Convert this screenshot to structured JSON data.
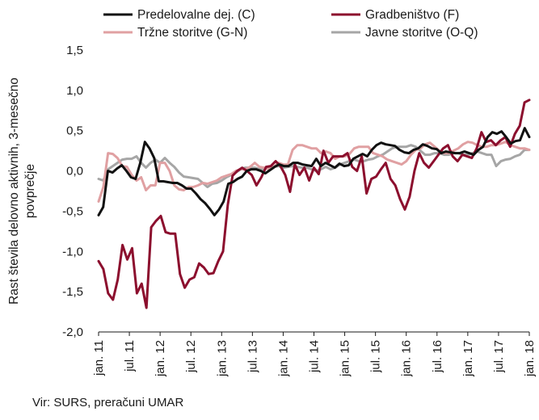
{
  "chart_data": {
    "type": "line",
    "ylabel_lines": [
      "Rast števila delovno aktivnih, 3-mesečno",
      "povprečje"
    ],
    "xlabel": "",
    "ylim": [
      -2.0,
      1.5
    ],
    "y_ticks": [
      "1,5",
      "1,0",
      "0,5",
      "0,0",
      "-0,5",
      "-1,0",
      "-1,5",
      "-2,0"
    ],
    "x_ticks": [
      "jan. 11",
      "jul. 11",
      "jan. 12",
      "jul. 12",
      "jan. 13",
      "jul. 13",
      "jan. 14",
      "jul. 14",
      "jan. 15",
      "jul. 15",
      "jan. 16",
      "jul. 16",
      "jan. 17",
      "jul. 17",
      "jan. 18"
    ],
    "legend_position": "top",
    "grid": false,
    "x_start": "2011-01",
    "x_end": "2018-01",
    "series": [
      {
        "name": "Predelovalne dej. (C)",
        "color": "#111111",
        "values": [
          -0.55,
          -0.45,
          0.0,
          -0.02,
          0.03,
          0.07,
          0.0,
          -0.08,
          -0.1,
          0.1,
          0.36,
          0.28,
          0.16,
          -0.13,
          -0.13,
          -0.14,
          -0.15,
          -0.15,
          -0.18,
          -0.22,
          -0.22,
          -0.28,
          -0.35,
          -0.4,
          -0.47,
          -0.55,
          -0.48,
          -0.38,
          -0.16,
          -0.14,
          -0.1,
          -0.07,
          0.0,
          0.02,
          0.02,
          0.0,
          -0.03,
          0.01,
          0.05,
          0.08,
          0.06,
          0.06,
          0.1,
          0.1,
          0.08,
          0.07,
          0.06,
          0.15,
          0.06,
          0.1,
          0.07,
          0.04,
          0.09,
          0.06,
          0.07,
          0.15,
          0.18,
          0.21,
          0.18,
          0.26,
          0.32,
          0.35,
          0.33,
          0.32,
          0.31,
          0.26,
          0.23,
          0.22,
          0.26,
          0.28,
          0.33,
          0.31,
          0.28,
          0.27,
          0.22,
          0.24,
          0.23,
          0.22,
          0.22,
          0.24,
          0.22,
          0.2,
          0.26,
          0.3,
          0.42,
          0.48,
          0.46,
          0.49,
          0.42,
          0.34,
          0.37,
          0.38,
          0.53,
          0.42
        ]
      },
      {
        "name": "Gradbeništvo (F)",
        "color": "#8c0f2e",
        "values": [
          -1.12,
          -1.22,
          -1.52,
          -1.6,
          -1.35,
          -0.92,
          -1.1,
          -0.96,
          -1.52,
          -1.4,
          -1.7,
          -0.7,
          -0.62,
          -0.56,
          -0.76,
          -0.78,
          -0.78,
          -1.28,
          -1.45,
          -1.35,
          -1.32,
          -1.15,
          -1.2,
          -1.28,
          -1.27,
          -1.12,
          -1.0,
          -0.42,
          -0.06,
          0.0,
          0.04,
          0.0,
          -0.05,
          -0.18,
          -0.08,
          0.05,
          0.06,
          0.12,
          0.06,
          -0.05,
          -0.26,
          0.08,
          -0.05,
          0.04,
          -0.12,
          0.04,
          -0.04,
          0.25,
          0.1,
          0.18,
          0.18,
          0.18,
          0.22,
          0.05,
          0.0,
          0.18,
          -0.28,
          -0.1,
          -0.07,
          0.02,
          0.1,
          -0.1,
          -0.18,
          -0.35,
          -0.48,
          -0.32,
          0.0,
          0.22,
          0.1,
          0.04,
          0.12,
          0.2,
          0.28,
          0.32,
          0.18,
          0.12,
          0.2,
          0.18,
          0.16,
          0.28,
          0.48,
          0.36,
          0.38,
          0.32,
          0.38,
          0.42,
          0.3,
          0.46,
          0.56,
          0.85,
          0.88
        ]
      },
      {
        "name": "Tržne storitve (G-N)",
        "color": "#e0a0a2",
        "values": [
          -0.38,
          -0.2,
          0.22,
          0.21,
          0.16,
          0.06,
          0.05,
          -0.05,
          -0.12,
          -0.08,
          -0.24,
          -0.18,
          -0.18,
          0.1,
          0.1,
          0.0,
          -0.18,
          -0.23,
          -0.24,
          -0.2,
          -0.2,
          -0.18,
          -0.15,
          -0.16,
          -0.14,
          -0.12,
          -0.08,
          -0.06,
          -0.04,
          0.0,
          0.02,
          0.02,
          0.05,
          0.1,
          0.05,
          0.04,
          0.02,
          0.05,
          0.1,
          0.08,
          0.08,
          0.26,
          0.32,
          0.32,
          0.3,
          0.28,
          0.28,
          0.22,
          0.24,
          0.22,
          0.15,
          0.18,
          0.18,
          0.21,
          0.28,
          0.3,
          0.3,
          0.3,
          0.22,
          0.2,
          0.18,
          0.14,
          0.12,
          0.1,
          0.08,
          0.12,
          0.2,
          0.26,
          0.28,
          0.33,
          0.35,
          0.3,
          0.25,
          0.22,
          0.22,
          0.25,
          0.28,
          0.33,
          0.36,
          0.35,
          0.32,
          0.3,
          0.3,
          0.32,
          0.32,
          0.34,
          0.36,
          0.32,
          0.3,
          0.28,
          0.28,
          0.26
        ]
      },
      {
        "name": "Javne storitve (O-Q)",
        "color": "#a6a6a6",
        "values": [
          -0.1,
          -0.12,
          0.02,
          0.06,
          0.1,
          0.14,
          0.15,
          0.15,
          0.18,
          0.1,
          0.04,
          0.1,
          0.14,
          0.1,
          0.16,
          0.1,
          0.05,
          -0.02,
          -0.07,
          -0.08,
          -0.09,
          -0.1,
          -0.15,
          -0.2,
          -0.16,
          -0.15,
          -0.12,
          -0.08,
          -0.05,
          -0.02,
          0.02,
          0.04,
          0.04,
          0.04,
          0.02,
          0.02,
          0.04,
          0.05,
          0.06,
          0.04,
          0.05,
          0.06,
          0.05,
          0.04,
          0.04,
          0.02,
          0.0,
          0.02,
          0.05,
          0.02,
          0.04,
          0.08,
          0.1,
          0.12,
          0.14,
          0.12,
          0.12,
          0.14,
          0.15,
          0.18,
          0.2,
          0.24,
          0.28,
          0.3,
          0.3,
          0.3,
          0.32,
          0.3,
          0.25,
          0.2,
          0.2,
          0.22,
          0.22,
          0.2,
          0.2,
          0.22,
          0.22,
          0.2,
          0.2,
          0.22,
          0.24,
          0.22,
          0.2,
          0.2,
          0.06,
          0.12,
          0.14,
          0.15,
          0.18,
          0.2,
          0.26,
          0.26
        ]
      }
    ]
  },
  "source_text": "Vir: SURS, preračuni UMAR"
}
